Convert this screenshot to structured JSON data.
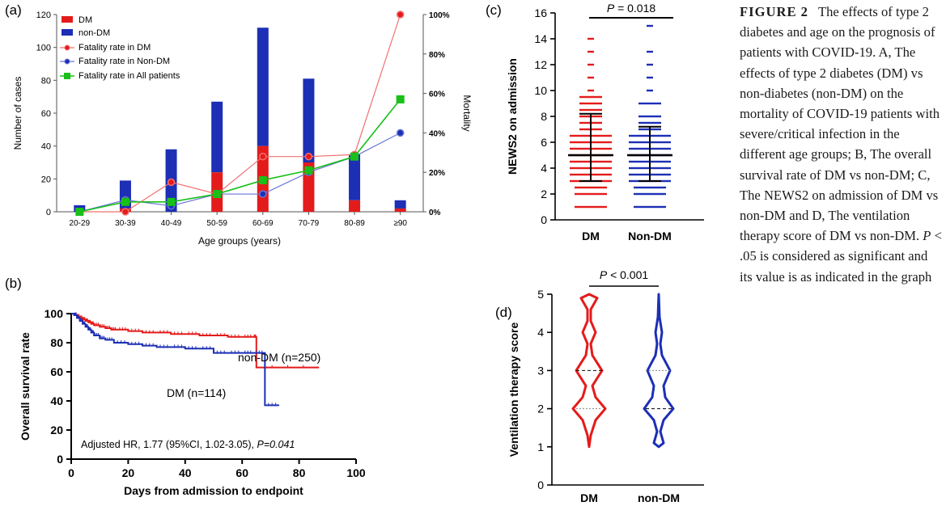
{
  "panel_labels": {
    "a": "(a)",
    "b": "(b)",
    "c": "(c)",
    "d": "(d)"
  },
  "caption": {
    "label": "FIGURE 2",
    "text": "The effects of type 2 diabetes and age on the prognosis of patients with COVID-19. A, The effects of type 2 diabetes (DM) vs non-diabetes (non-DM) on the mortality of COVID-19 patients with severe/critical infection in the different age groups; B, The overall survival rate of DM vs non-DM; C, The NEWS2 on admission of DM vs non-DM and D, The ventilation therapy score of DM vs non-DM.",
    "p_symbol": "P",
    "tail": " < .05 is considered as significant and its value is as indicated in the graph"
  },
  "colors": {
    "dm": "#e41b1b",
    "nondm": "#1c2fb5",
    "all": "#18c018",
    "nondm_line": "#6a75d6",
    "dm_line": "#f07070",
    "axis": "#444444"
  },
  "chart_data": [
    {
      "id": "a",
      "type": "bar",
      "categories": [
        "20-29",
        "30-39",
        "40-49",
        "50-59",
        "60-69",
        "70-79",
        "80-89",
        "≥90"
      ],
      "series": [
        {
          "name": "DM",
          "values": [
            0,
            2,
            0,
            24,
            40,
            30,
            7,
            2
          ]
        },
        {
          "name": "non-DM",
          "values": [
            4,
            17,
            38,
            43,
            72,
            51,
            28,
            5
          ]
        },
        {
          "name": "Fatality rate in DM",
          "axis": "right",
          "values": [
            0,
            0,
            15,
            9,
            28,
            28,
            29,
            100
          ]
        },
        {
          "name": "Fatality rate in Non-DM",
          "axis": "right",
          "values": [
            0,
            6,
            3,
            9,
            9,
            20,
            28,
            40
          ]
        },
        {
          "name": "Fatality rate in All patients",
          "axis": "right",
          "values": [
            0,
            5,
            5,
            9,
            16,
            21,
            28,
            57
          ]
        }
      ],
      "stacked": true,
      "ylabel": "Number of cases",
      "ylabel_right": "Mortality",
      "xlabel": "Age groups (years)",
      "ylim": [
        0,
        120
      ],
      "yticks": [
        "0",
        "20",
        "40",
        "60",
        "80",
        "100",
        "120"
      ],
      "ylim_right": [
        0,
        100
      ],
      "yticks_right": [
        "0%",
        "20%",
        "40%",
        "60%",
        "80%",
        "100%"
      ],
      "legend": "top-left"
    },
    {
      "id": "b",
      "type": "line",
      "subtype": "kaplan-meier",
      "xlabel": "Days from admission to endpoint",
      "ylabel": "Overall survival rate",
      "xlim": [
        0,
        100
      ],
      "ylim": [
        0,
        100
      ],
      "xticks": [
        "0",
        "20",
        "40",
        "60",
        "80",
        "100"
      ],
      "yticks": [
        "0",
        "20",
        "40",
        "60",
        "80",
        "100"
      ],
      "series": [
        {
          "name": "non-DM (n=250)",
          "x": [
            0,
            1,
            2,
            3,
            4,
            5,
            6,
            7,
            8,
            10,
            12,
            14,
            16,
            20,
            25,
            30,
            35,
            40,
            45,
            50,
            55,
            60,
            64,
            65,
            87
          ],
          "y": [
            100,
            99,
            98,
            97,
            96,
            95,
            94,
            93,
            92,
            91,
            90,
            89,
            89,
            88,
            87,
            87,
            86,
            86,
            85,
            85,
            84,
            84,
            84,
            63,
            63
          ]
        },
        {
          "name": "DM (n=114)",
          "x": [
            0,
            1,
            2,
            3,
            4,
            5,
            6,
            7,
            8,
            10,
            12,
            15,
            20,
            25,
            30,
            35,
            40,
            45,
            50,
            55,
            60,
            64,
            68,
            73
          ],
          "y": [
            100,
            99,
            97,
            95,
            93,
            91,
            89,
            87,
            85,
            83,
            82,
            80,
            79,
            78,
            77,
            77,
            76,
            76,
            73,
            73,
            73,
            73,
            37,
            37
          ]
        }
      ],
      "annotation": "Adjusted HR, 1.77 (95%CI, 1.02-3.05), ",
      "annotation_p": "P=0.041"
    },
    {
      "id": "c",
      "type": "scatter",
      "subtype": "dot-plot",
      "categories": [
        "DM",
        "Non-DM"
      ],
      "ylabel": "NEWS2 on admission",
      "ylim": [
        0,
        16
      ],
      "yticks": [
        "0",
        "2",
        "4",
        "6",
        "8",
        "10",
        "12",
        "14",
        "16"
      ],
      "series": [
        {
          "name": "DM",
          "median": 5,
          "q1": 3,
          "q3": 6,
          "sd_low": 3,
          "sd_high": 8.2,
          "values": [
            1,
            2,
            2.5,
            3,
            3.5,
            4,
            4.5,
            5,
            5.5,
            6,
            6.5,
            7,
            7.5,
            8,
            8.5,
            9,
            9.5,
            10,
            11,
            12,
            13,
            14
          ]
        },
        {
          "name": "Non-DM",
          "median": 5,
          "q1": 3,
          "q3": 6,
          "sd_low": 3,
          "sd_high": 7.2,
          "values": [
            1,
            2,
            2.5,
            3,
            3.5,
            4,
            4.5,
            5,
            5.5,
            6,
            6.5,
            7,
            7.5,
            8,
            9,
            10,
            11,
            12,
            13,
            15
          ]
        }
      ],
      "annotation": "= 0.018",
      "annotation_p": "P"
    },
    {
      "id": "d",
      "type": "violin",
      "categories": [
        "DM",
        "non-DM"
      ],
      "ylabel": "Ventilation therapy score",
      "ylim": [
        0,
        5
      ],
      "yticks": [
        "0",
        "1",
        "2",
        "3",
        "4",
        "5"
      ],
      "series": [
        {
          "name": "DM",
          "median": 3,
          "q1": 2,
          "q3": 3
        },
        {
          "name": "non-DM",
          "median": 2,
          "q1": 2,
          "q3": 3
        }
      ],
      "annotation": "< 0.001",
      "annotation_p": "P"
    }
  ]
}
